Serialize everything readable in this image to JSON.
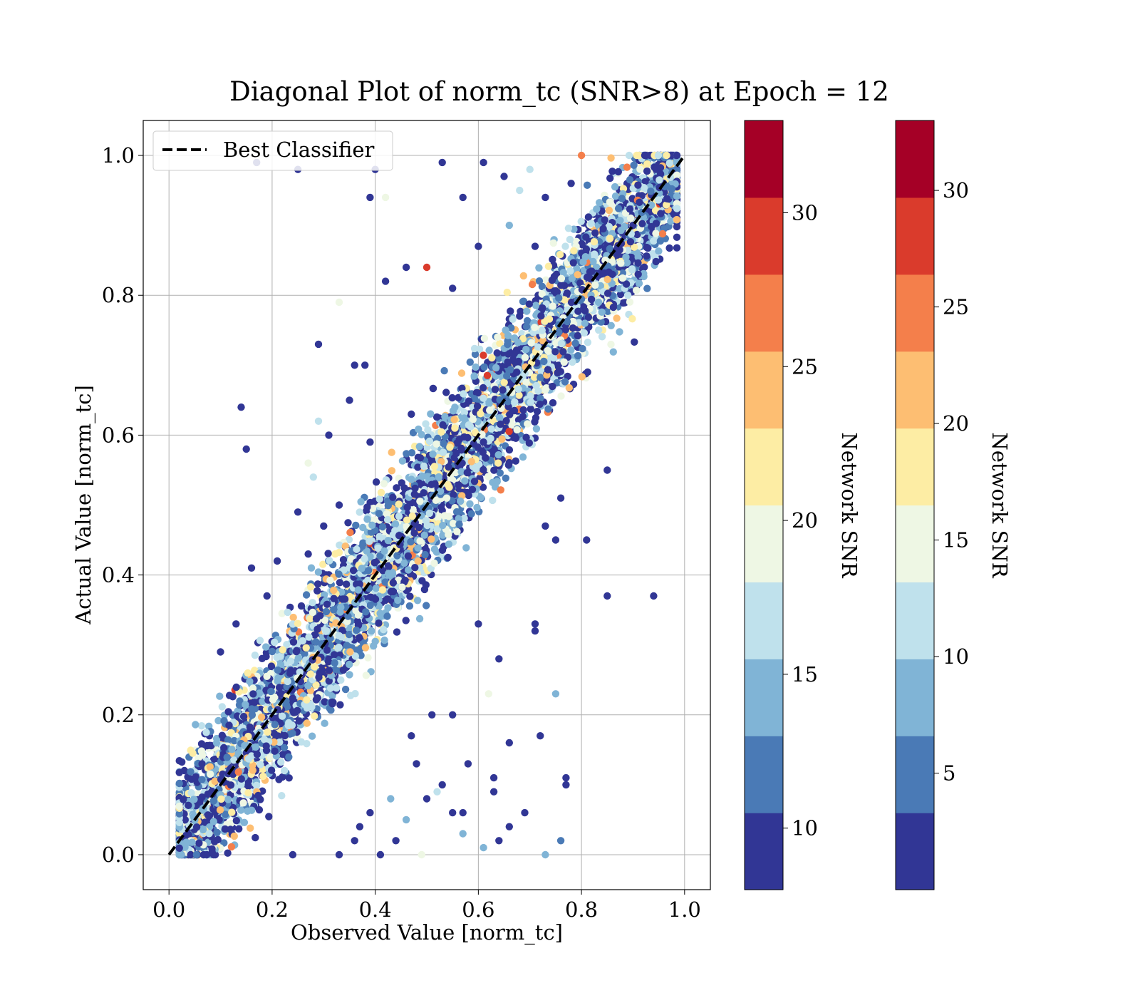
{
  "chart_data": {
    "type": "scatter",
    "title": "Diagonal Plot of norm_tc (SNR>8) at Epoch = 12",
    "xlabel": "Observed Value [norm_tc]",
    "ylabel": "Actual Value [norm_tc]",
    "xlim": [
      -0.05,
      1.05
    ],
    "ylim": [
      -0.05,
      1.05
    ],
    "xticks": [
      "0.0",
      "0.2",
      "0.4",
      "0.6",
      "0.8",
      "1.0"
    ],
    "yticks": [
      "0.0",
      "0.2",
      "0.4",
      "0.6",
      "0.8",
      "1.0"
    ],
    "grid": true,
    "legend": {
      "position": "upper-left",
      "entries": [
        {
          "label": "Best Classifier",
          "style": "dashed",
          "color": "#000000"
        }
      ]
    },
    "reference_line": {
      "name": "Best Classifier",
      "x": [
        0.0,
        1.0
      ],
      "y": [
        0.0,
        1.0
      ]
    },
    "point_cloud": {
      "description_count": 6000,
      "band_center": "y = x",
      "band_halfwidth": 0.075,
      "colormap": "RdYlBu_r"
    },
    "outliers": [
      [
        0.17,
        0.99
      ],
      [
        0.25,
        0.98
      ],
      [
        0.4,
        0.98
      ],
      [
        0.39,
        0.94
      ],
      [
        0.42,
        0.94
      ],
      [
        0.27,
        0.56
      ],
      [
        0.15,
        0.58
      ],
      [
        0.14,
        0.64
      ],
      [
        0.33,
        0.79
      ],
      [
        0.29,
        0.73
      ],
      [
        0.36,
        0.7
      ],
      [
        0.38,
        0.7
      ],
      [
        0.42,
        0.82
      ],
      [
        0.46,
        0.84
      ],
      [
        0.5,
        0.84
      ],
      [
        0.55,
        0.81
      ],
      [
        0.57,
        0.94
      ],
      [
        0.61,
        0.99
      ],
      [
        0.65,
        0.97
      ],
      [
        0.68,
        0.95
      ],
      [
        0.7,
        0.98
      ],
      [
        0.53,
        0.99
      ],
      [
        0.6,
        0.87
      ],
      [
        0.28,
        0.54
      ],
      [
        0.33,
        0.5
      ],
      [
        0.31,
        0.6
      ],
      [
        0.35,
        0.65
      ],
      [
        0.29,
        0.62
      ],
      [
        0.76,
        0.51
      ],
      [
        0.73,
        0.47
      ],
      [
        0.75,
        0.45
      ],
      [
        0.81,
        0.45
      ],
      [
        0.85,
        0.55
      ],
      [
        0.85,
        0.37
      ],
      [
        0.94,
        0.37
      ],
      [
        0.71,
        0.33
      ],
      [
        0.71,
        0.32
      ],
      [
        0.62,
        0.23
      ],
      [
        0.64,
        0.28
      ],
      [
        0.6,
        0.33
      ],
      [
        0.55,
        0.2
      ],
      [
        0.51,
        0.2
      ],
      [
        0.47,
        0.17
      ],
      [
        0.48,
        0.13
      ],
      [
        0.52,
        0.09
      ],
      [
        0.55,
        0.06
      ],
      [
        0.57,
        0.03
      ],
      [
        0.58,
        0.13
      ],
      [
        0.63,
        0.11
      ],
      [
        0.63,
        0.09
      ],
      [
        0.66,
        0.16
      ],
      [
        0.69,
        0.06
      ],
      [
        0.72,
        0.17
      ],
      [
        0.75,
        0.23
      ],
      [
        0.77,
        0.11
      ],
      [
        0.77,
        0.1
      ],
      [
        0.76,
        0.02
      ],
      [
        0.73,
        0.0
      ],
      [
        0.61,
        0.01
      ],
      [
        0.49,
        0.0
      ],
      [
        0.41,
        0.0
      ],
      [
        0.33,
        0.0
      ],
      [
        0.44,
        0.02
      ],
      [
        0.37,
        0.04
      ],
      [
        0.39,
        0.06
      ],
      [
        0.46,
        0.05
      ],
      [
        0.5,
        0.08
      ],
      [
        0.53,
        0.1
      ],
      [
        0.57,
        0.06
      ],
      [
        0.64,
        0.02
      ],
      [
        0.66,
        0.04
      ],
      [
        0.36,
        0.02
      ],
      [
        0.43,
        0.08
      ],
      [
        0.24,
        0.0
      ],
      [
        0.1,
        0.29
      ],
      [
        0.13,
        0.33
      ],
      [
        0.16,
        0.41
      ],
      [
        0.19,
        0.37
      ],
      [
        0.21,
        0.42
      ],
      [
        0.25,
        0.49
      ],
      [
        0.27,
        0.43
      ],
      [
        0.3,
        0.47
      ],
      [
        0.61,
        0.59
      ],
      [
        0.66,
        0.9
      ],
      [
        0.73,
        0.94
      ],
      [
        0.78,
        0.96
      ],
      [
        0.8,
        1.0
      ],
      [
        0.71,
        0.87
      ],
      [
        0.47,
        0.63
      ],
      [
        0.39,
        0.59
      ],
      [
        0.86,
        0.83
      ],
      [
        0.89,
        0.8
      ],
      [
        0.91,
        0.83
      ]
    ],
    "colorbars": [
      {
        "label": "Network SNR",
        "range": [
          8,
          33
        ],
        "ticks": [
          "10",
          "15",
          "20",
          "25",
          "30"
        ],
        "tick_values": [
          10,
          15,
          20,
          25,
          30
        ]
      },
      {
        "label": "Network SNR",
        "range": [
          0,
          33
        ],
        "ticks": [
          "5",
          "10",
          "15",
          "20",
          "25",
          "30"
        ],
        "tick_values": [
          5,
          10,
          15,
          20,
          25,
          30
        ]
      }
    ],
    "colormap_bands": [
      "#313695",
      "#4575b4",
      "#74add1",
      "#abd9e9",
      "#e0f3f8",
      "#fee090",
      "#fdae61",
      "#f46d43",
      "#d73027",
      "#a50026"
    ],
    "colormap_display": [
      "#313695",
      "#4a7ab6",
      "#80b4d6",
      "#bfe1ec",
      "#eef7e4",
      "#fdeda4",
      "#fdbe72",
      "#f47f4b",
      "#da3b2c",
      "#a50026"
    ]
  }
}
